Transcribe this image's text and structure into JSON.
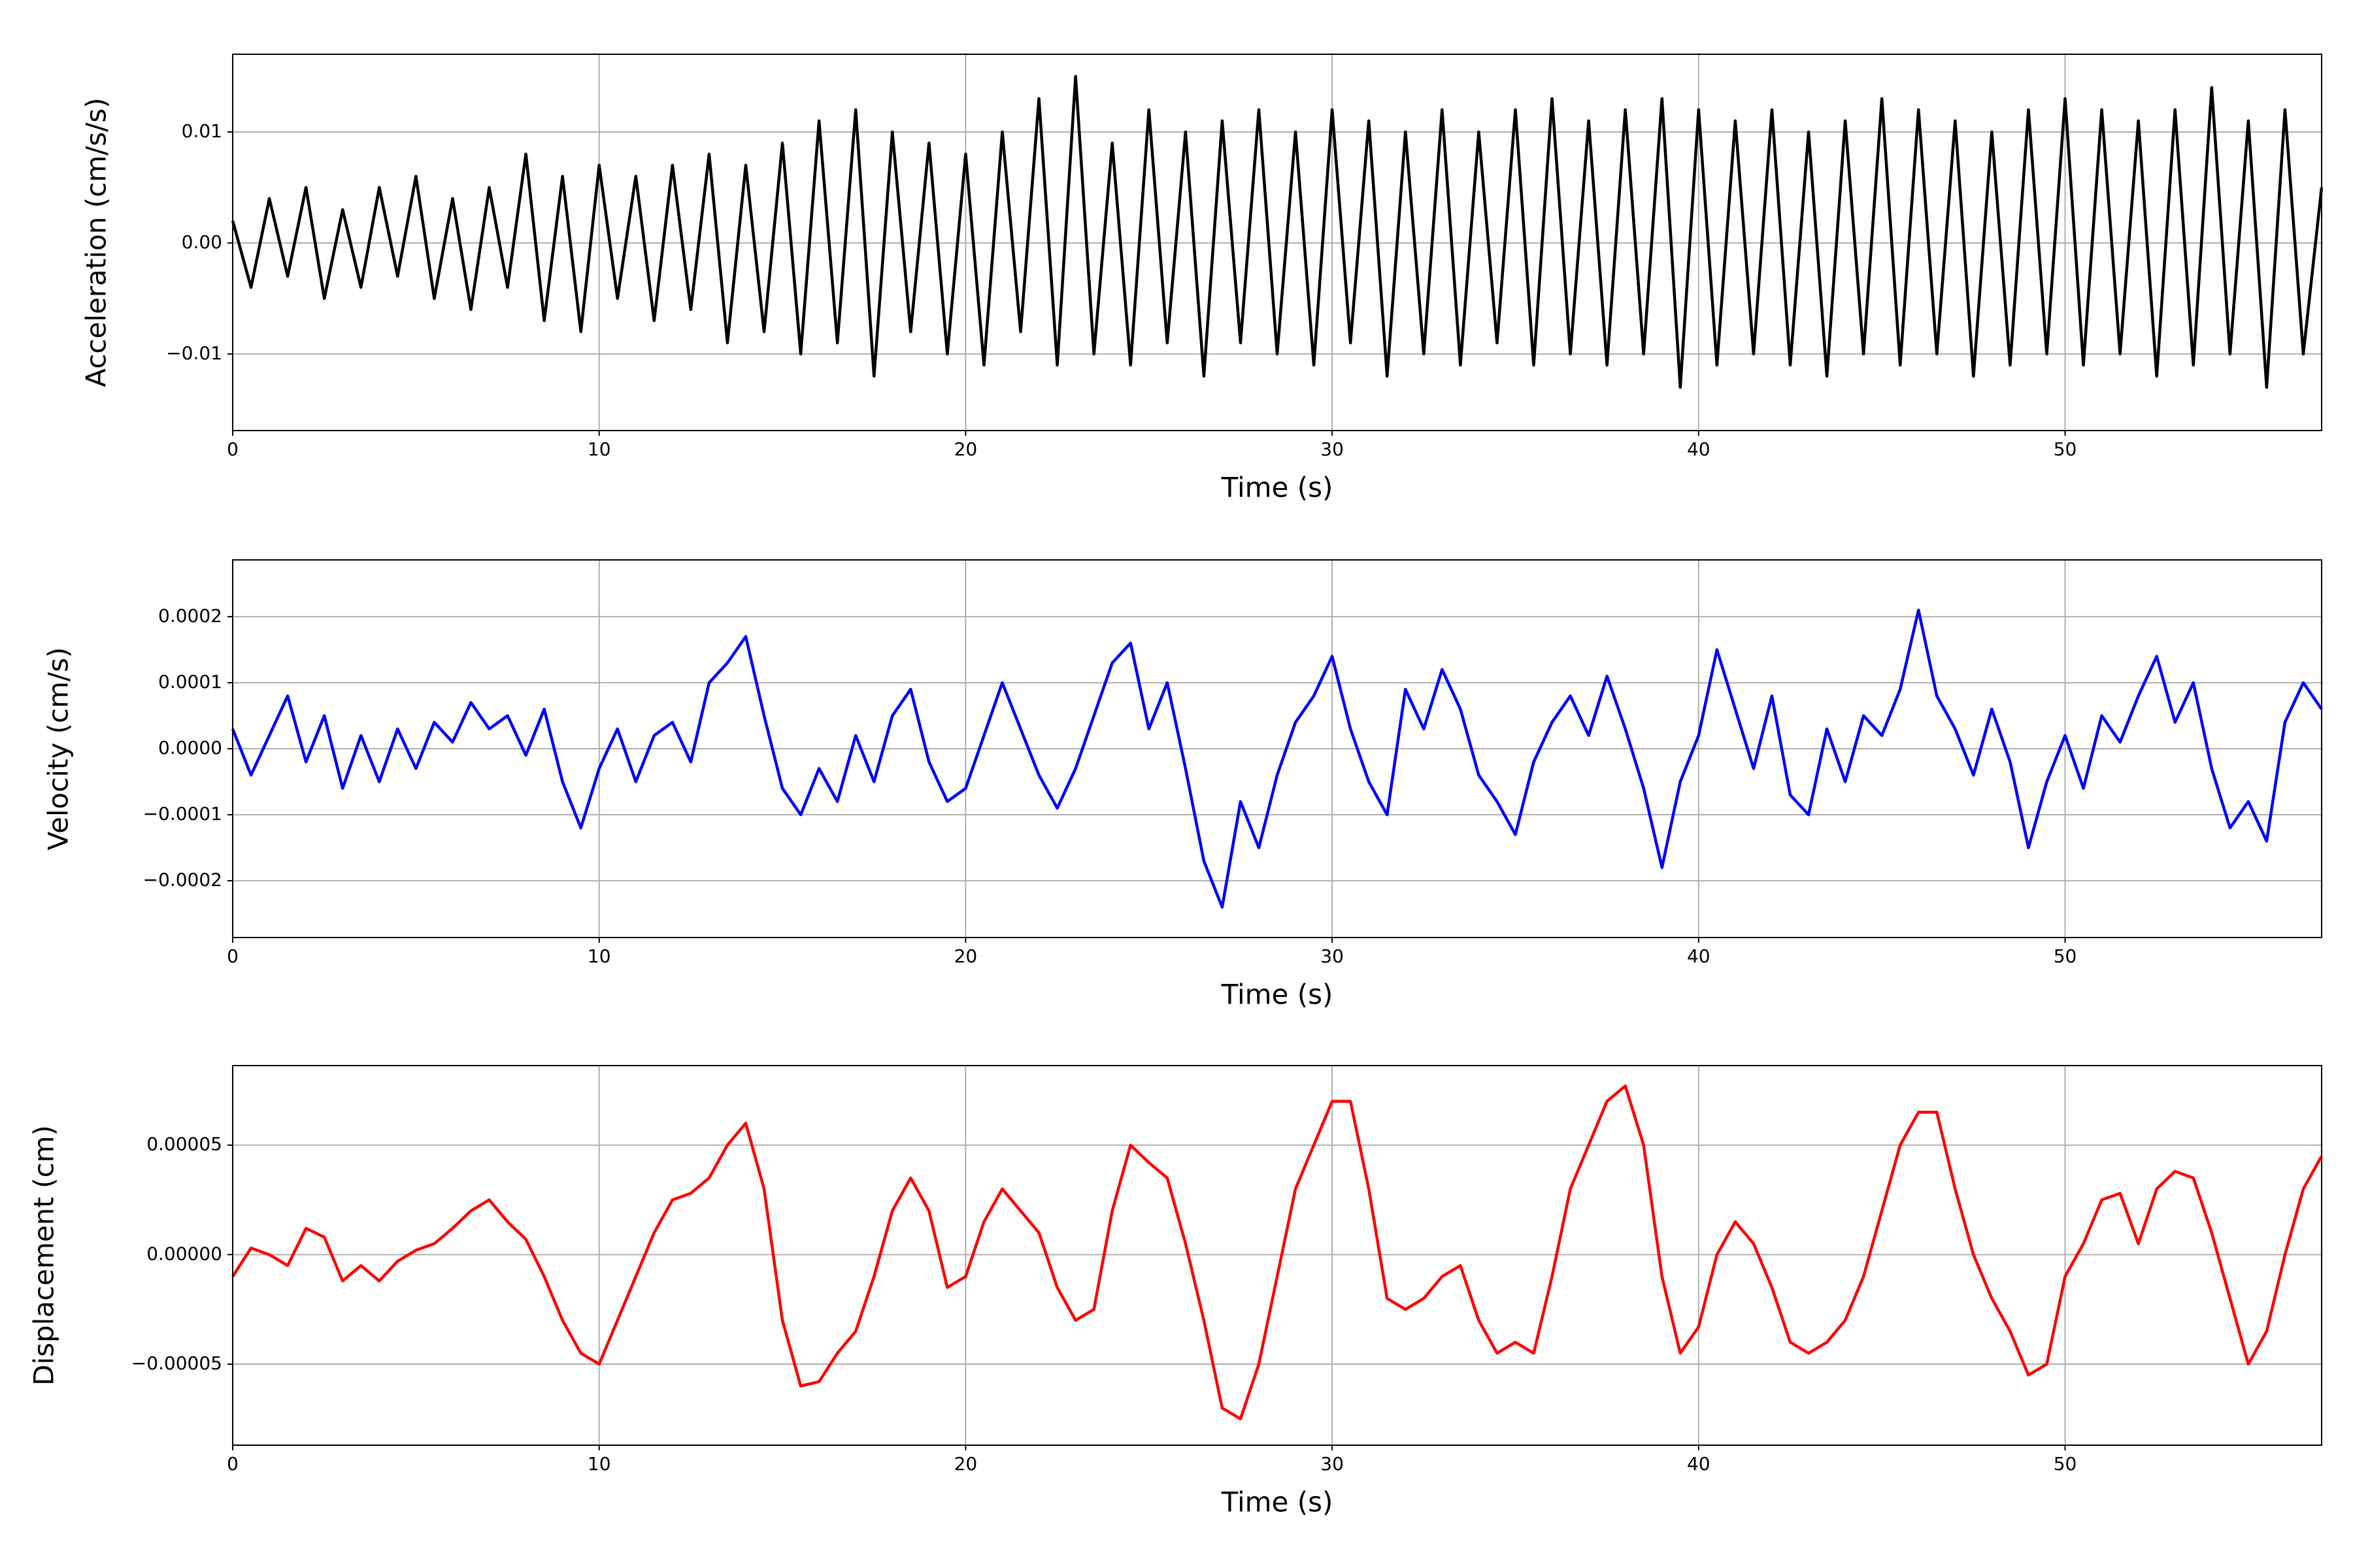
{
  "chart_data": [
    {
      "type": "line",
      "xlabel": "Time (s)",
      "ylabel": "Acceleration (cm/s/s)",
      "color": "#000000",
      "grid": true,
      "xlim": [
        0,
        57
      ],
      "xticks": [
        0,
        10,
        20,
        30,
        40,
        50
      ],
      "ylim": [
        -0.0169,
        0.017
      ],
      "yticks": [
        {
          "value": -0.01,
          "label": "−0.01"
        },
        {
          "value": 0,
          "label": "0.00"
        },
        0.01
      ],
      "x": [
        0,
        0.5,
        1,
        1.5,
        2,
        2.5,
        3,
        3.5,
        4,
        4.5,
        5,
        5.5,
        6,
        6.5,
        7,
        7.5,
        8,
        8.5,
        9,
        9.5,
        10,
        10.5,
        11,
        11.5,
        12,
        12.5,
        13,
        13.5,
        14,
        14.5,
        15,
        15.5,
        16,
        16.5,
        17,
        17.5,
        18,
        18.5,
        19,
        19.5,
        20,
        20.5,
        21,
        21.5,
        22,
        22.5,
        23,
        23.5,
        24,
        24.5,
        25,
        25.5,
        26,
        26.5,
        27,
        27.5,
        28,
        28.5,
        29,
        29.5,
        30,
        30.5,
        31,
        31.5,
        32,
        32.5,
        33,
        33.5,
        34,
        34.5,
        35,
        35.5,
        36,
        36.5,
        37,
        37.5,
        38,
        38.5,
        39,
        39.5,
        40,
        40.5,
        41,
        41.5,
        42,
        42.5,
        43,
        43.5,
        44,
        44.5,
        45,
        45.5,
        46,
        46.5,
        47,
        47.5,
        48,
        48.5,
        49,
        49.5,
        50,
        50.5,
        51,
        51.5,
        52,
        52.5,
        53,
        53.5,
        54,
        54.5,
        55,
        55.5,
        56,
        56.5,
        57
      ],
      "values": [
        0.002,
        -0.004,
        0.004,
        -0.003,
        0.005,
        -0.005,
        0.003,
        -0.004,
        0.005,
        -0.003,
        0.006,
        -0.005,
        0.004,
        -0.006,
        0.005,
        -0.004,
        0.008,
        -0.007,
        0.006,
        -0.008,
        0.007,
        -0.005,
        0.006,
        -0.007,
        0.007,
        -0.006,
        0.008,
        -0.009,
        0.007,
        -0.008,
        0.009,
        -0.01,
        0.011,
        -0.009,
        0.012,
        -0.012,
        0.01,
        -0.008,
        0.009,
        -0.01,
        0.008,
        -0.011,
        0.01,
        -0.008,
        0.013,
        -0.011,
        0.015,
        -0.01,
        0.009,
        -0.011,
        0.012,
        -0.009,
        0.01,
        -0.012,
        0.011,
        -0.009,
        0.012,
        -0.01,
        0.01,
        -0.011,
        0.012,
        -0.009,
        0.011,
        -0.012,
        0.01,
        -0.01,
        0.012,
        -0.011,
        0.01,
        -0.009,
        0.012,
        -0.011,
        0.013,
        -0.01,
        0.011,
        -0.011,
        0.012,
        -0.01,
        0.013,
        -0.013,
        0.012,
        -0.011,
        0.011,
        -0.01,
        0.012,
        -0.011,
        0.01,
        -0.012,
        0.011,
        -0.01,
        0.013,
        -0.011,
        0.012,
        -0.01,
        0.011,
        -0.012,
        0.01,
        -0.011,
        0.012,
        -0.01,
        0.013,
        -0.011,
        0.012,
        -0.01,
        0.011,
        -0.012,
        0.012,
        -0.011,
        0.014,
        -0.01,
        0.011,
        -0.013,
        0.012,
        -0.01,
        0.005
      ]
    },
    {
      "type": "line",
      "xlabel": "Time (s)",
      "ylabel": "Velocity (cm/s)",
      "color": "#0000ff",
      "grid": true,
      "xlim": [
        0,
        57
      ],
      "xticks": [
        0,
        10,
        20,
        30,
        40,
        50
      ],
      "ylim": [
        -0.000286,
        0.000286
      ],
      "yticks": [
        {
          "value": -0.0002,
          "label": "−0.0002"
        },
        {
          "value": -0.0001,
          "label": "−0.0001"
        },
        {
          "value": 0,
          "label": "0.0000"
        },
        0.0001,
        0.0002
      ],
      "x": [
        0,
        0.5,
        1,
        1.5,
        2,
        2.5,
        3,
        3.5,
        4,
        4.5,
        5,
        5.5,
        6,
        6.5,
        7,
        7.5,
        8,
        8.5,
        9,
        9.5,
        10,
        10.5,
        11,
        11.5,
        12,
        12.5,
        13,
        13.5,
        14,
        14.5,
        15,
        15.5,
        16,
        16.5,
        17,
        17.5,
        18,
        18.5,
        19,
        19.5,
        20,
        20.5,
        21,
        21.5,
        22,
        22.5,
        23,
        23.5,
        24,
        24.5,
        25,
        25.5,
        26,
        26.5,
        27,
        27.5,
        28,
        28.5,
        29,
        29.5,
        30,
        30.5,
        31,
        31.5,
        32,
        32.5,
        33,
        33.5,
        34,
        34.5,
        35,
        35.5,
        36,
        36.5,
        37,
        37.5,
        38,
        38.5,
        39,
        39.5,
        40,
        40.5,
        41,
        41.5,
        42,
        42.5,
        43,
        43.5,
        44,
        44.5,
        45,
        45.5,
        46,
        46.5,
        47,
        47.5,
        48,
        48.5,
        49,
        49.5,
        50,
        50.5,
        51,
        51.5,
        52,
        52.5,
        53,
        53.5,
        54,
        54.5,
        55,
        55.5,
        56,
        56.5,
        57
      ],
      "values": [
        3e-05,
        -4e-05,
        2e-05,
        8e-05,
        -2e-05,
        5e-05,
        -6e-05,
        2e-05,
        -5e-05,
        3e-05,
        -3e-05,
        4e-05,
        1e-05,
        7e-05,
        3e-05,
        5e-05,
        -1e-05,
        6e-05,
        -5e-05,
        -0.00012,
        -3e-05,
        3e-05,
        -5e-05,
        2e-05,
        4e-05,
        -2e-05,
        0.0001,
        0.00013,
        0.00017,
        5e-05,
        -6e-05,
        -0.0001,
        -3e-05,
        -8e-05,
        2e-05,
        -5e-05,
        5e-05,
        9e-05,
        -2e-05,
        -8e-05,
        -6e-05,
        2e-05,
        0.0001,
        3e-05,
        -4e-05,
        -9e-05,
        -3e-05,
        5e-05,
        0.00013,
        0.00016,
        3e-05,
        0.0001,
        -3e-05,
        -0.00017,
        -0.00024,
        -8e-05,
        -0.00015,
        -4e-05,
        4e-05,
        8e-05,
        0.00014,
        3e-05,
        -5e-05,
        -0.0001,
        9e-05,
        3e-05,
        0.00012,
        6e-05,
        -4e-05,
        -8e-05,
        -0.00013,
        -2e-05,
        4e-05,
        8e-05,
        2e-05,
        0.00011,
        3e-05,
        -6e-05,
        -0.00018,
        -5e-05,
        2e-05,
        0.00015,
        6e-05,
        -3e-05,
        8e-05,
        -7e-05,
        -0.0001,
        3e-05,
        -5e-05,
        5e-05,
        2e-05,
        9e-05,
        0.00021,
        8e-05,
        3e-05,
        -4e-05,
        6e-05,
        -2e-05,
        -0.00015,
        -5e-05,
        2e-05,
        -6e-05,
        5e-05,
        1e-05,
        8e-05,
        0.00014,
        4e-05,
        0.0001,
        -3e-05,
        -0.00012,
        -8e-05,
        -0.00014,
        4e-05,
        0.0001,
        6e-05
      ]
    },
    {
      "type": "line",
      "xlabel": "Time (s)",
      "ylabel": "Displacement (cm)",
      "color": "#ff0000",
      "grid": true,
      "xlim": [
        0,
        57
      ],
      "xticks": [
        0,
        10,
        20,
        30,
        40,
        50
      ],
      "ylim": [
        -8.7e-05,
        8.63e-05
      ],
      "yticks": [
        {
          "value": -5e-05,
          "label": "−0.00005"
        },
        {
          "value": 0,
          "label": "0.00000"
        },
        5e-05
      ],
      "x": [
        0,
        0.5,
        1,
        1.5,
        2,
        2.5,
        3,
        3.5,
        4,
        4.5,
        5,
        5.5,
        6,
        6.5,
        7,
        7.5,
        8,
        8.5,
        9,
        9.5,
        10,
        10.5,
        11,
        11.5,
        12,
        12.5,
        13,
        13.5,
        14,
        14.5,
        15,
        15.5,
        16,
        16.5,
        17,
        17.5,
        18,
        18.5,
        19,
        19.5,
        20,
        20.5,
        21,
        21.5,
        22,
        22.5,
        23,
        23.5,
        24,
        24.5,
        25,
        25.5,
        26,
        26.5,
        27,
        27.5,
        28,
        28.5,
        29,
        29.5,
        30,
        30.5,
        31,
        31.5,
        32,
        32.5,
        33,
        33.5,
        34,
        34.5,
        35,
        35.5,
        36,
        36.5,
        37,
        37.5,
        38,
        38.5,
        39,
        39.5,
        40,
        40.5,
        41,
        41.5,
        42,
        42.5,
        43,
        43.5,
        44,
        44.5,
        45,
        45.5,
        46,
        46.5,
        47,
        47.5,
        48,
        48.5,
        49,
        49.5,
        50,
        50.5,
        51,
        51.5,
        52,
        52.5,
        53,
        53.5,
        54,
        54.5,
        55,
        55.5,
        56,
        56.5,
        57
      ],
      "values": [
        -1e-05,
        3e-06,
        0,
        -5e-06,
        1.2e-05,
        8e-06,
        -1.2e-05,
        -5e-06,
        -1.2e-05,
        -3e-06,
        2e-06,
        5e-06,
        1.2e-05,
        2e-05,
        2.5e-05,
        1.5e-05,
        7e-06,
        -1e-05,
        -3e-05,
        -4.5e-05,
        -5e-05,
        -3e-05,
        -1e-05,
        1e-05,
        2.5e-05,
        2.8e-05,
        3.5e-05,
        5e-05,
        6e-05,
        3e-05,
        -3e-05,
        -6e-05,
        -5.8e-05,
        -4.5e-05,
        -3.5e-05,
        -1e-05,
        2e-05,
        3.5e-05,
        2e-05,
        -1.5e-05,
        -1e-05,
        1.5e-05,
        3e-05,
        2e-05,
        1e-05,
        -1.5e-05,
        -3e-05,
        -2.5e-05,
        2e-05,
        5e-05,
        4.2e-05,
        3.5e-05,
        5e-06,
        -3e-05,
        -7e-05,
        -7.5e-05,
        -5e-05,
        -1e-05,
        3e-05,
        5e-05,
        7e-05,
        7e-05,
        3e-05,
        -2e-05,
        -2.5e-05,
        -2e-05,
        -1e-05,
        -5e-06,
        -3e-05,
        -4.5e-05,
        -4e-05,
        -4.5e-05,
        -1e-05,
        3e-05,
        5e-05,
        7e-05,
        7.7e-05,
        5e-05,
        -1e-05,
        -4.5e-05,
        -3.3e-05,
        0,
        1.5e-05,
        5e-06,
        -1.5e-05,
        -4e-05,
        -4.5e-05,
        -4e-05,
        -3e-05,
        -1e-05,
        2e-05,
        5e-05,
        6.5e-05,
        6.5e-05,
        3e-05,
        0,
        -2e-05,
        -3.5e-05,
        -5.5e-05,
        -5e-05,
        -1e-05,
        5e-06,
        2.5e-05,
        2.8e-05,
        5e-06,
        3e-05,
        3.8e-05,
        3.5e-05,
        1e-05,
        -2e-05,
        -5e-05,
        -3.5e-05,
        0,
        3e-05,
        4.5e-05
      ]
    }
  ]
}
